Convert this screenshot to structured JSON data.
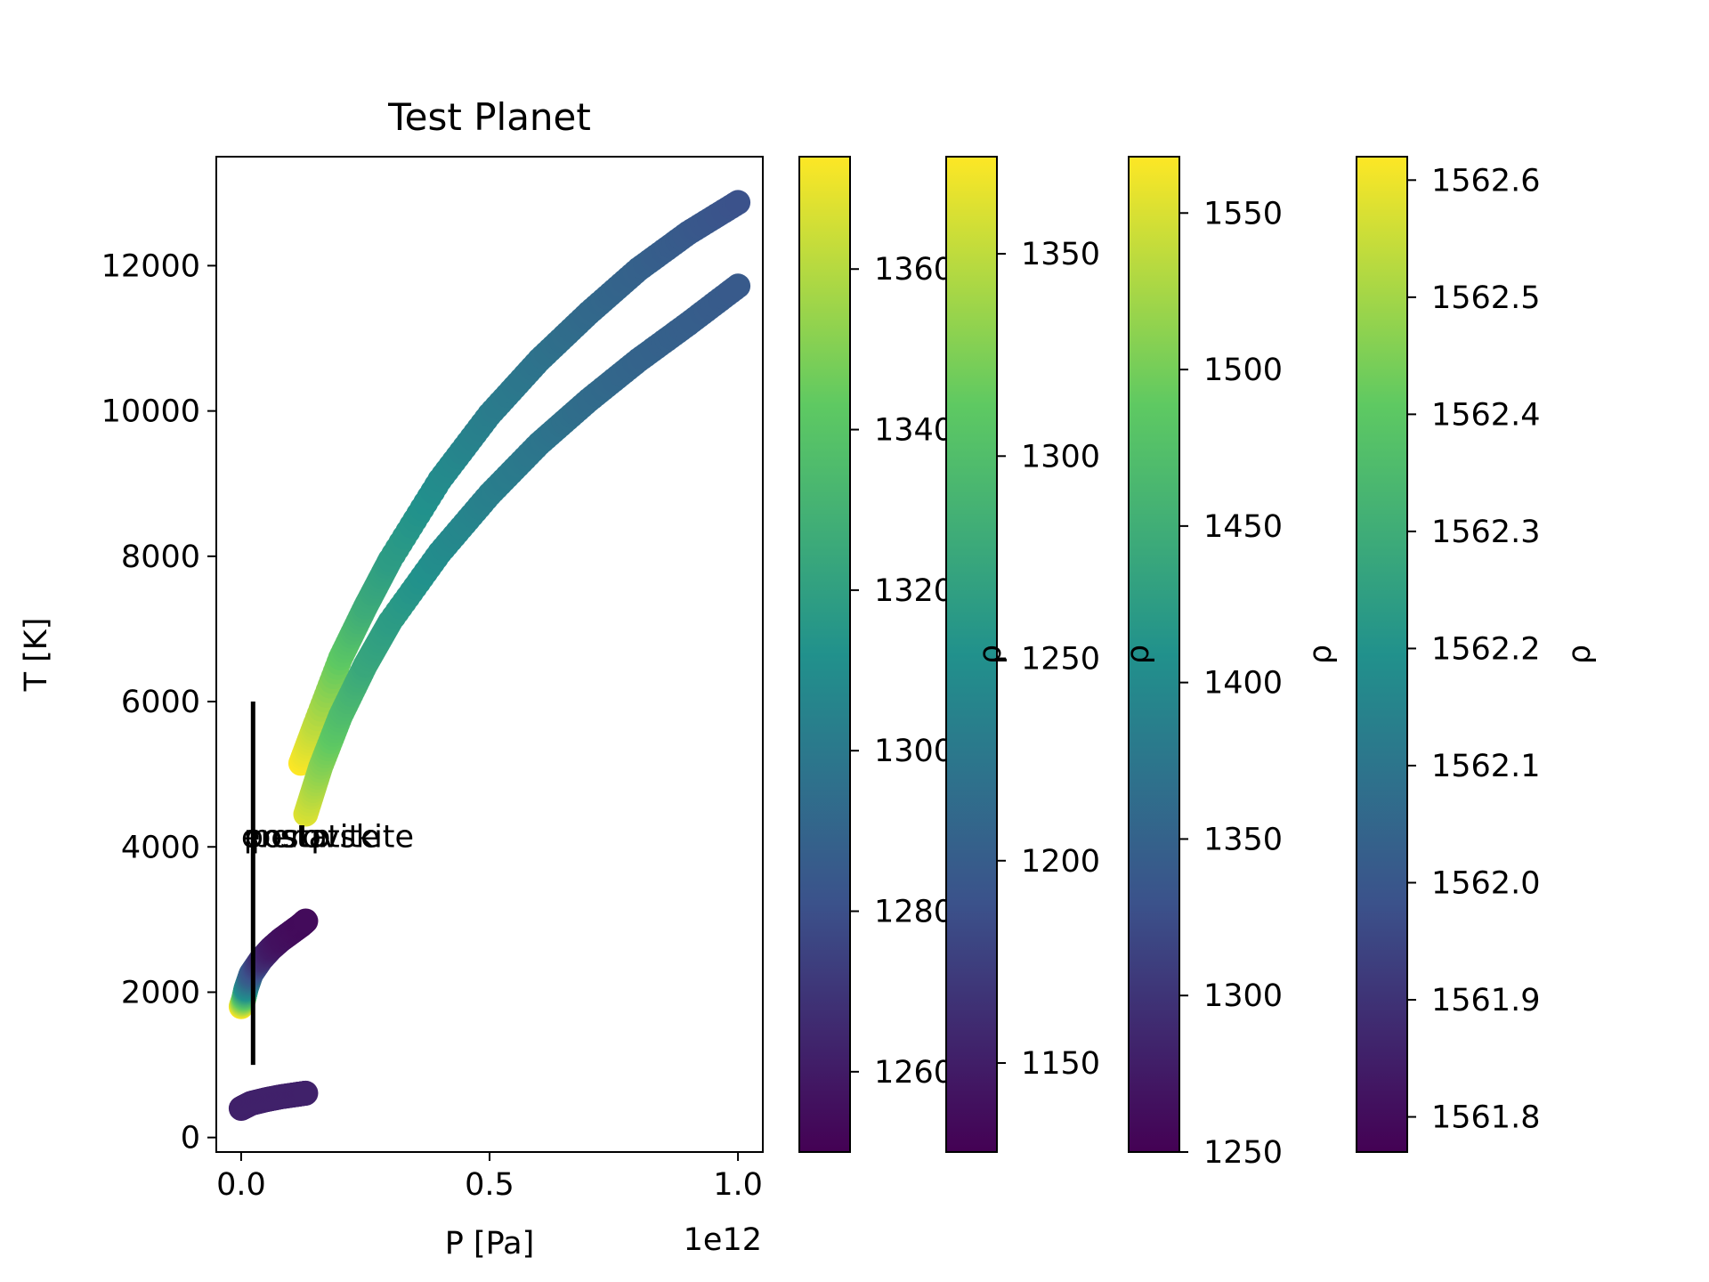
{
  "chart_data": {
    "type": "scatter",
    "title": "Test Planet",
    "xlabel": "P [Pa]",
    "ylabel": "T [K]",
    "x_offset_label": "1e12",
    "xlim": [
      -0.05,
      1.05
    ],
    "ylim": [
      -200,
      13500
    ],
    "x_ticks": [
      0.0,
      0.5,
      1.0
    ],
    "x_tick_labels": [
      "0.0",
      "0.5",
      "1.0"
    ],
    "y_ticks": [
      0,
      2000,
      4000,
      6000,
      8000,
      10000,
      12000
    ],
    "y_tick_labels": [
      "0",
      "2000",
      "4000",
      "6000",
      "8000",
      "10000",
      "12000"
    ],
    "grid": false,
    "colormap": [
      "#440154",
      "#3b528b",
      "#21918c",
      "#5ec962",
      "#fde725"
    ],
    "series": [
      {
        "x": [
          0.0,
          0.02,
          0.05,
          0.08,
          0.11,
          0.13
        ],
        "y": [
          400,
          470,
          520,
          560,
          590,
          610
        ],
        "c": [
          0.1,
          0.1,
          0.1,
          0.1,
          0.1,
          0.1
        ]
      },
      {
        "x": [
          0.0,
          0.005,
          0.01,
          0.02,
          0.04,
          0.06,
          0.08,
          0.1,
          0.12,
          0.13
        ],
        "y": [
          1800,
          1900,
          2050,
          2250,
          2450,
          2600,
          2720,
          2820,
          2920,
          2980
        ],
        "c": [
          1.0,
          0.8,
          0.5,
          0.3,
          0.15,
          0.08,
          0.05,
          0.04,
          0.03,
          0.03
        ]
      },
      {
        "x": [
          0.12,
          0.15,
          0.2,
          0.25,
          0.3,
          0.4,
          0.5,
          0.6,
          0.7,
          0.8,
          0.9,
          1.0
        ],
        "y": [
          5150,
          5700,
          6600,
          7300,
          7950,
          9050,
          9950,
          10700,
          11350,
          11950,
          12450,
          12870
        ],
        "c": [
          1.0,
          0.9,
          0.75,
          0.62,
          0.55,
          0.48,
          0.42,
          0.38,
          0.34,
          0.31,
          0.28,
          0.25
        ]
      },
      {
        "x": [
          0.13,
          0.16,
          0.2,
          0.25,
          0.3,
          0.4,
          0.5,
          0.6,
          0.7,
          0.8,
          0.9,
          1.0
        ],
        "y": [
          4450,
          5100,
          5800,
          6500,
          7100,
          8050,
          8850,
          9550,
          10150,
          10700,
          11200,
          11720
        ],
        "c": [
          0.95,
          0.82,
          0.7,
          0.6,
          0.55,
          0.48,
          0.43,
          0.39,
          0.35,
          0.32,
          0.3,
          0.28
        ]
      }
    ],
    "vline": {
      "x": 0.024,
      "y_from": 1000,
      "y_to": 6000
    },
    "annotations": [
      {
        "text": "enstatite",
        "x": 0.0,
        "y": 4000
      },
      {
        "text": "perovskite",
        "x": 0.02,
        "y": 4000
      },
      {
        "text": "postp",
        "x": 0.005,
        "y": 4000
      }
    ],
    "colorbars": [
      {
        "label": "",
        "range": [
          1250,
          1374
        ],
        "ticks": [
          1260,
          1280,
          1300,
          1320,
          1340,
          1360
        ],
        "tick_labels": [
          "1260",
          "1280",
          "1300",
          "1320",
          "1340",
          "1360"
        ]
      },
      {
        "label": "ρ",
        "range": [
          1128,
          1374
        ],
        "ticks": [
          1150,
          1200,
          1250,
          1300,
          1350
        ],
        "tick_labels": [
          "1150",
          "1200",
          "1250",
          "1300",
          "1350"
        ]
      },
      {
        "label": "ρ",
        "range": [
          1250,
          1568
        ],
        "ticks": [
          1250,
          1300,
          1350,
          1400,
          1450,
          1500,
          1550
        ],
        "tick_labels": [
          "1250",
          "1300",
          "1350",
          "1400",
          "1450",
          "1500",
          "1550"
        ]
      },
      {
        "label": "ρ",
        "range": [
          1561.77,
          1562.62
        ],
        "ticks": [
          1561.8,
          1561.9,
          1562.0,
          1562.1,
          1562.2,
          1562.3,
          1562.4,
          1562.5,
          1562.6
        ],
        "tick_labels": [
          "1561.8",
          "1561.9",
          "1562.0",
          "1562.1",
          "1562.2",
          "1562.3",
          "1562.4",
          "1562.5",
          "1562.6"
        ]
      },
      {
        "label": "ρ",
        "range": [
          0,
          1
        ],
        "ticks": [],
        "tick_labels": []
      }
    ]
  }
}
